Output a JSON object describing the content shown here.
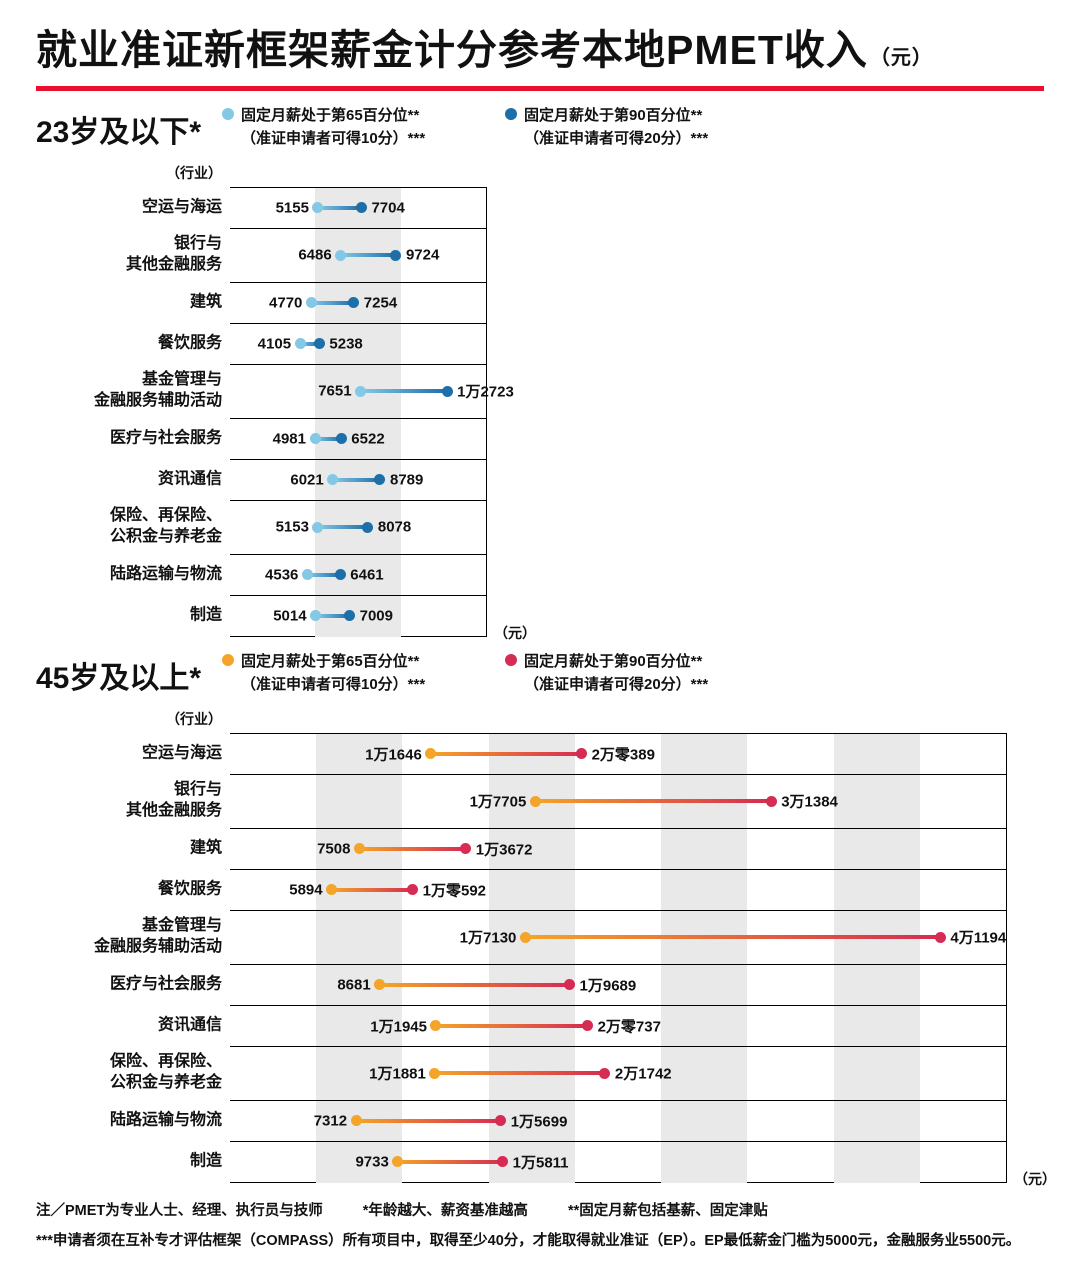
{
  "title": {
    "main": "就业准证新框架薪金计分参考本地PMET收入",
    "unit": "（元）"
  },
  "colors": {
    "title_underline": "#e8102e",
    "stripe": "#e9e9e9",
    "p65_young": "#85c8e6",
    "p90_young": "#1c6fa9",
    "p65_old": "#f4a428",
    "p90_old": "#d62b52",
    "text": "#111111"
  },
  "chart_data": [
    {
      "type": "dumbbell",
      "section_title": "23岁及以下*",
      "industry_header": "（行业）",
      "axis_unit": "（元）",
      "xlim": [
        0,
        15000
      ],
      "stripe_bands": [
        [
          5000,
          10000
        ]
      ],
      "categories": [
        [
          "空运与海运"
        ],
        [
          "银行与",
          "其他金融服务"
        ],
        [
          "建筑"
        ],
        [
          "餐饮服务"
        ],
        [
          "基金管理与",
          "金融服务辅助活动"
        ],
        [
          "医疗与社会服务"
        ],
        [
          "资讯通信"
        ],
        [
          "保险、再保险、",
          "公积金与养老金"
        ],
        [
          "陆路运输与物流"
        ],
        [
          "制造"
        ]
      ],
      "series": [
        {
          "name": "固定月薪处于第65百分位**",
          "subname": "（准证申请者可得10分）***",
          "color": "#85c8e6",
          "values": [
            5155,
            6486,
            4770,
            4105,
            7651,
            4981,
            6021,
            5153,
            4536,
            5014
          ],
          "labels": [
            "5155",
            "6486",
            "4770",
            "4105",
            "7651",
            "4981",
            "6021",
            "5153",
            "4536",
            "5014"
          ]
        },
        {
          "name": "固定月薪处于第90百分位**",
          "subname": "（准证申请者可得20分）***",
          "color": "#1c6fa9",
          "values": [
            7704,
            9724,
            7254,
            5238,
            12723,
            6522,
            8789,
            8078,
            6461,
            7009
          ],
          "labels": [
            "7704",
            "9724",
            "7254",
            "5238",
            "1万2723",
            "6522",
            "8789",
            "8078",
            "6461",
            "7009"
          ]
        }
      ]
    },
    {
      "type": "dumbbell",
      "section_title": "45岁及以上*",
      "industry_header": "（行业）",
      "axis_unit": "（元）",
      "xlim": [
        0,
        45000
      ],
      "stripe_bands": [
        [
          5000,
          10000
        ],
        [
          15000,
          20000
        ],
        [
          25000,
          30000
        ],
        [
          35000,
          40000
        ]
      ],
      "categories": [
        [
          "空运与海运"
        ],
        [
          "银行与",
          "其他金融服务"
        ],
        [
          "建筑"
        ],
        [
          "餐饮服务"
        ],
        [
          "基金管理与",
          "金融服务辅助活动"
        ],
        [
          "医疗与社会服务"
        ],
        [
          "资讯通信"
        ],
        [
          "保险、再保险、",
          "公积金与养老金"
        ],
        [
          "陆路运输与物流"
        ],
        [
          "制造"
        ]
      ],
      "series": [
        {
          "name": "固定月薪处于第65百分位**",
          "subname": "（准证申请者可得10分）***",
          "color": "#f4a428",
          "values": [
            11646,
            17705,
            7508,
            5894,
            17130,
            8681,
            11945,
            11881,
            7312,
            9733
          ],
          "labels": [
            "1万1646",
            "1万7705",
            "7508",
            "5894",
            "1万7130",
            "8681",
            "1万1945",
            "1万1881",
            "7312",
            "9733"
          ]
        },
        {
          "name": "固定月薪处于第90百分位**",
          "subname": "（准证申请者可得20分）***",
          "color": "#d62b52",
          "values": [
            20389,
            31384,
            13672,
            10592,
            41194,
            19689,
            20737,
            21742,
            15699,
            15811
          ],
          "labels": [
            "2万零389",
            "3万1384",
            "1万3672",
            "1万零592",
            "4万1194",
            "1万9689",
            "2万零737",
            "2万1742",
            "1万5699",
            "1万5811"
          ]
        }
      ]
    }
  ],
  "notes": {
    "line1": [
      "注／PMET为专业人士、经理、执行员与技师",
      "*年龄越大、薪资基准越高",
      "**固定月薪包括基薪、固定津贴"
    ],
    "line2": "***申请者须在互补专才评估框架（COMPASS）所有项目中，取得至少40分，才能取得就业准证（EP）。EP最低薪金门槛为5000元，金融服务业5500元。"
  }
}
